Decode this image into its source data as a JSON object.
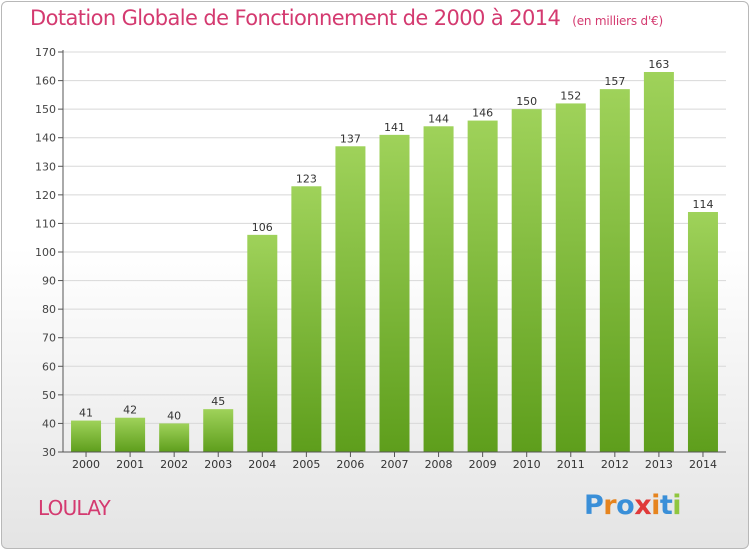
{
  "header": {
    "title": "Dotation Globale de Fonctionnement de 2000 à 2014",
    "unit": "(en milliers d'€)"
  },
  "footer": {
    "commune": "LOULAY",
    "logo_text": "Proxiti"
  },
  "colors": {
    "title": "#d43a70",
    "bar_top": "#9fd25a",
    "bar_bottom": "#5e9e1c",
    "axis": "#555555",
    "grid": "#d8d8d8",
    "logo_letters": [
      "#3a8fd8",
      "#e6841e",
      "#3a8fd8",
      "#e03a3a",
      "#e6841e",
      "#3a8fd8",
      "#8fc63f"
    ]
  },
  "chart_data": {
    "type": "bar",
    "title": "Dotation Globale de Fonctionnement de 2000 à 2014",
    "subtitle": "(en milliers d'€)",
    "xlabel": "",
    "ylabel": "",
    "categories": [
      "2000",
      "2001",
      "2002",
      "2003",
      "2004",
      "2005",
      "2006",
      "2007",
      "2008",
      "2009",
      "2010",
      "2011",
      "2012",
      "2013",
      "2014"
    ],
    "values": [
      41,
      42,
      40,
      45,
      106,
      123,
      137,
      141,
      144,
      146,
      150,
      152,
      157,
      163,
      114
    ],
    "ylim": [
      30,
      170
    ],
    "yticks": [
      30,
      40,
      50,
      60,
      70,
      80,
      90,
      100,
      110,
      120,
      130,
      140,
      150,
      160,
      170
    ],
    "grid": true,
    "data_labels": true
  }
}
